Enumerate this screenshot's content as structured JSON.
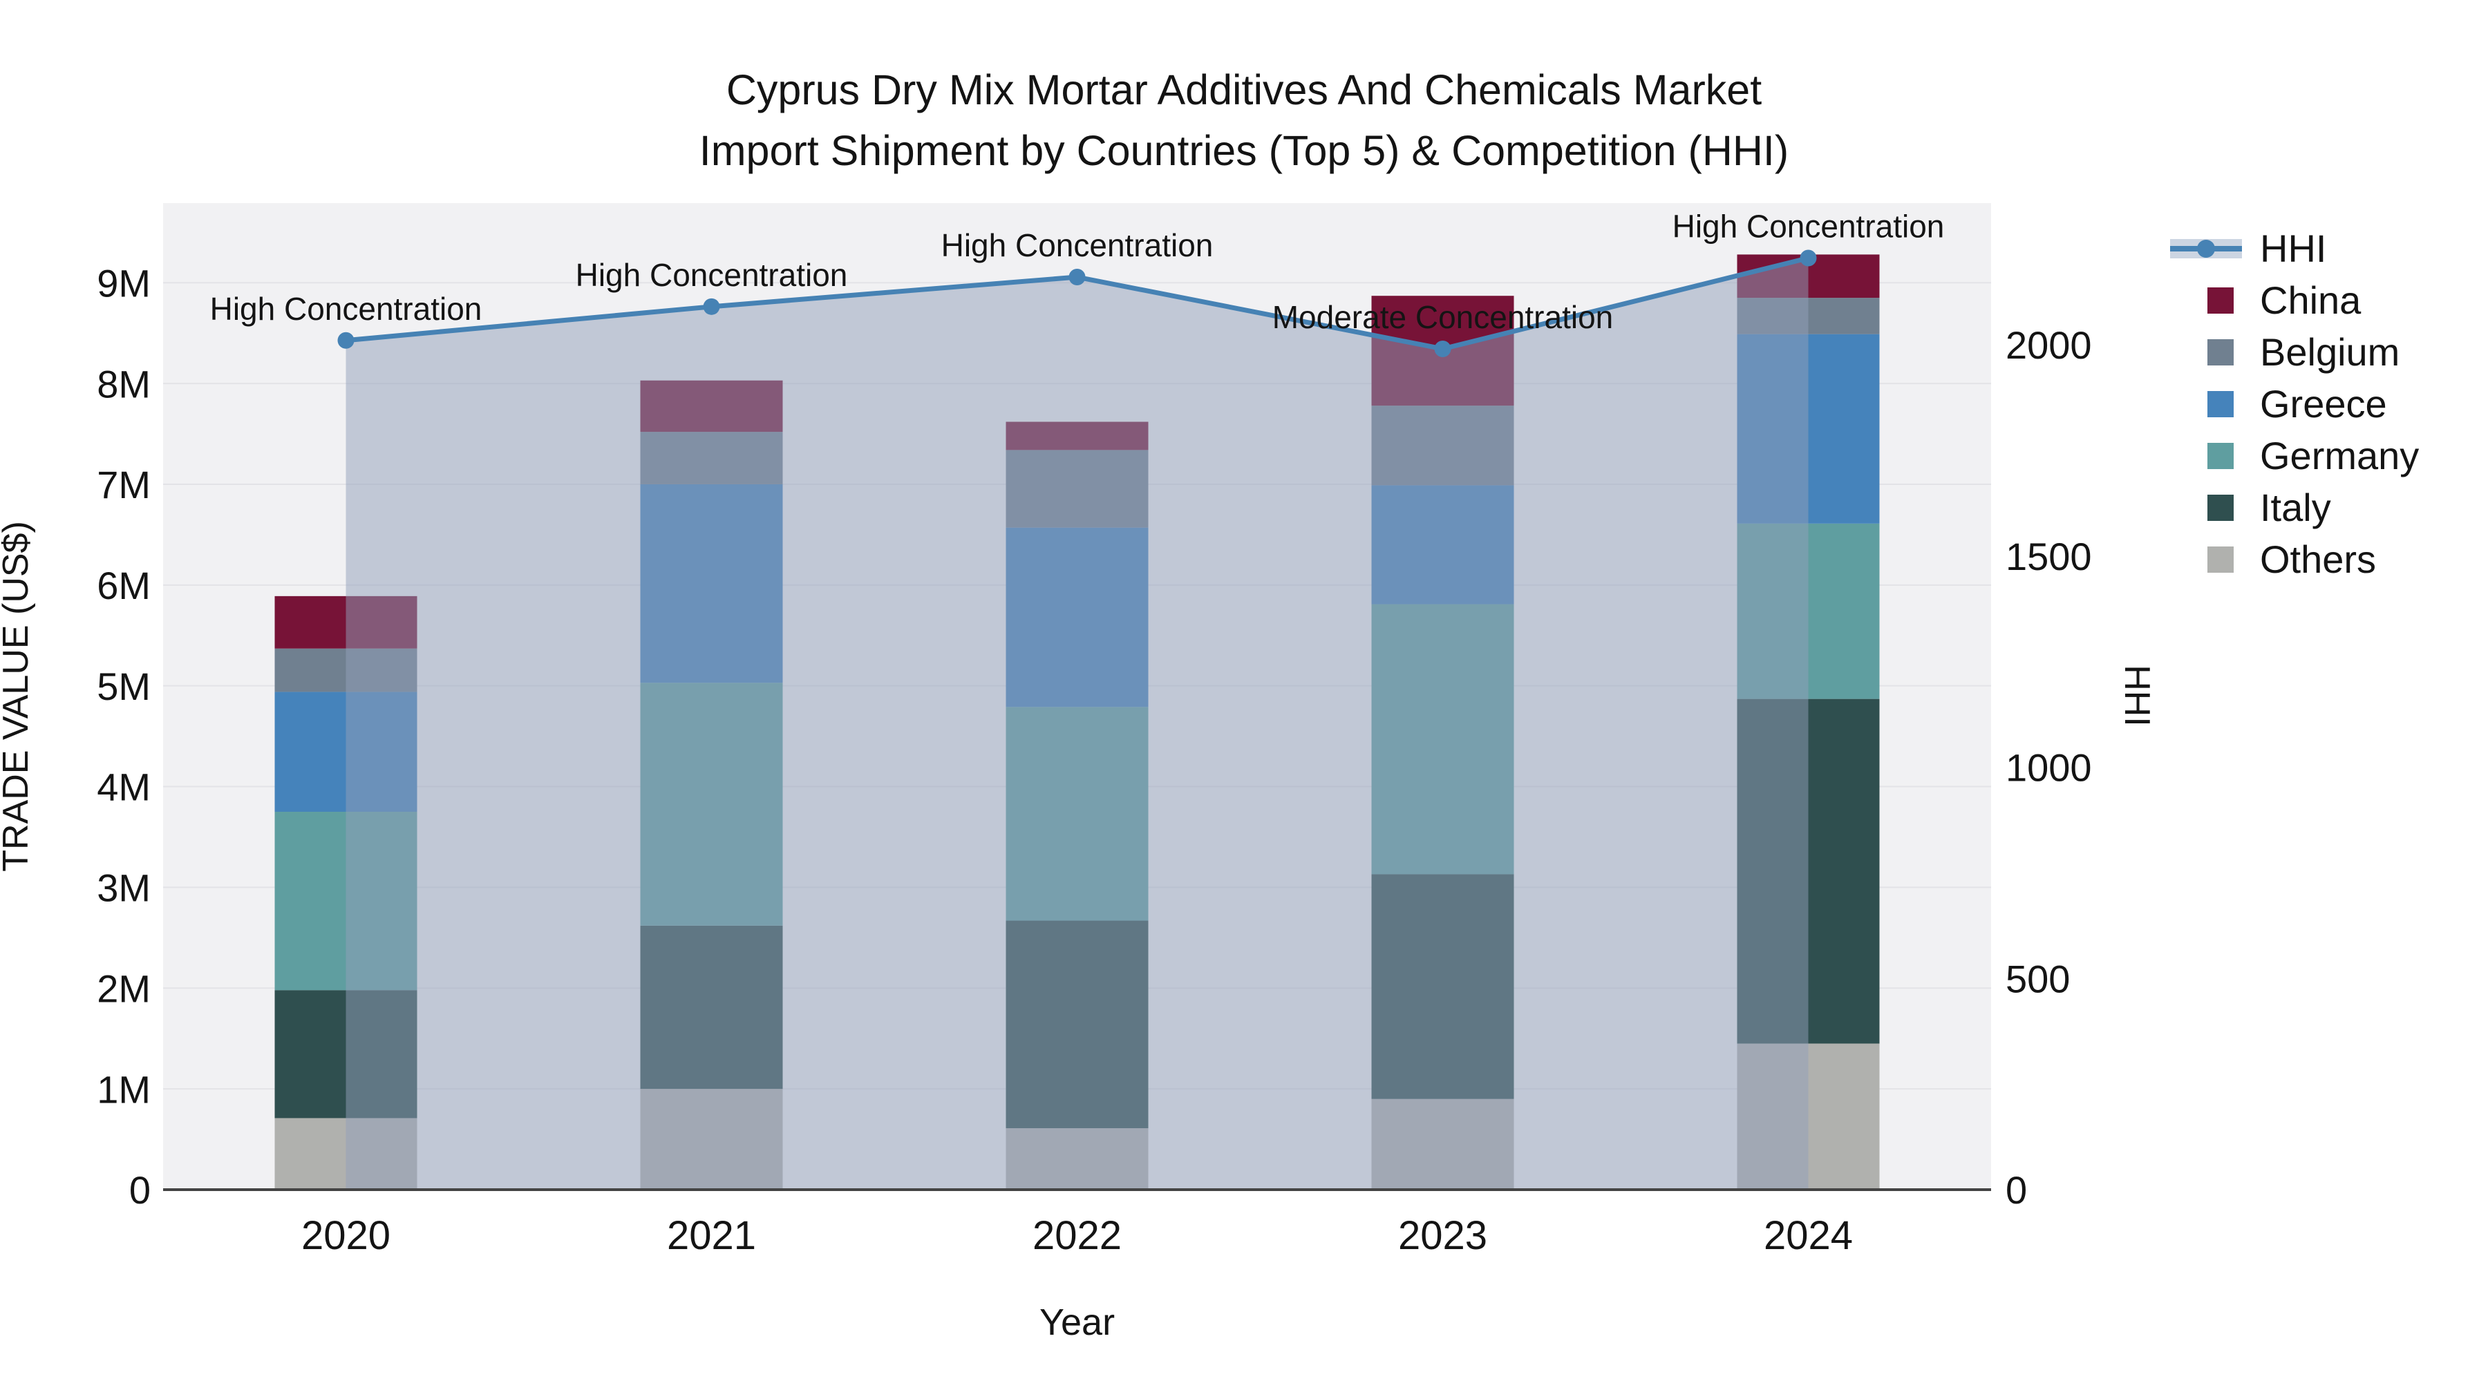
{
  "chart_data": {
    "type": "bar",
    "title": {
      "line1": "Cyprus Dry Mix Mortar Additives And Chemicals Market",
      "line2": "Import Shipment by Countries (Top 5) & Competition (HHI)"
    },
    "categories": [
      "2020",
      "2021",
      "2022",
      "2023",
      "2024"
    ],
    "bar_series": [
      {
        "name": "Others",
        "color": "#b0b1ae",
        "values_musd": [
          0.71,
          1.0,
          0.61,
          0.9,
          1.45
        ]
      },
      {
        "name": "Italy",
        "color": "#2f4f4f",
        "values_musd": [
          1.27,
          1.62,
          2.06,
          2.23,
          3.42
        ]
      },
      {
        "name": "Germany",
        "color": "#5f9ea0",
        "values_musd": [
          1.77,
          2.41,
          2.12,
          2.68,
          1.74
        ]
      },
      {
        "name": "Greece",
        "color": "#4583bb",
        "values_musd": [
          1.19,
          1.97,
          1.78,
          1.18,
          1.88
        ]
      },
      {
        "name": "Belgium",
        "color": "#708090",
        "values_musd": [
          0.43,
          0.52,
          0.77,
          0.79,
          0.36
        ]
      },
      {
        "name": "China",
        "color": "#771337",
        "values_musd": [
          0.52,
          0.51,
          0.28,
          1.09,
          0.43
        ]
      }
    ],
    "bar_totals_musd": [
      5.89,
      8.03,
      7.62,
      8.87,
      9.28
    ],
    "line_series": {
      "name": "HHI",
      "color": "#4682b4",
      "area_fill_color": "rgba(145,160,185,0.5)",
      "values": [
        2010,
        2090,
        2160,
        1990,
        2205
      ]
    },
    "annotations": [
      {
        "category": "2020",
        "text": "High Concentration"
      },
      {
        "category": "2021",
        "text": "High Concentration"
      },
      {
        "category": "2022",
        "text": "High Concentration"
      },
      {
        "category": "2023",
        "text": "Moderate Concentration"
      },
      {
        "category": "2024",
        "text": "High Concentration"
      }
    ],
    "left_axis": {
      "title": "TRADE VALUE (US$)",
      "tick_labels": [
        "0",
        "1M",
        "2M",
        "3M",
        "4M",
        "5M",
        "6M",
        "7M",
        "8M",
        "9M"
      ],
      "tick_values": [
        0,
        1,
        2,
        3,
        4,
        5,
        6,
        7,
        8,
        9
      ],
      "plot_max": 9.79
    },
    "right_axis": {
      "title": "HHI",
      "tick_labels": [
        "0",
        "500",
        "1000",
        "1500",
        "2000"
      ],
      "tick_values": [
        0,
        500,
        1000,
        1500,
        2000
      ],
      "plot_max": 2335
    },
    "x_axis": {
      "title": "Year"
    },
    "legend_order": [
      "HHI",
      "China",
      "Belgium",
      "Greece",
      "Germany",
      "Italy",
      "Others"
    ],
    "layout_hints": {
      "grid": "on",
      "legend_position": "right",
      "plot_background": "#f1f1f3",
      "gridline_color": "#e3e3e7",
      "axisline_color": "#444444"
    }
  }
}
